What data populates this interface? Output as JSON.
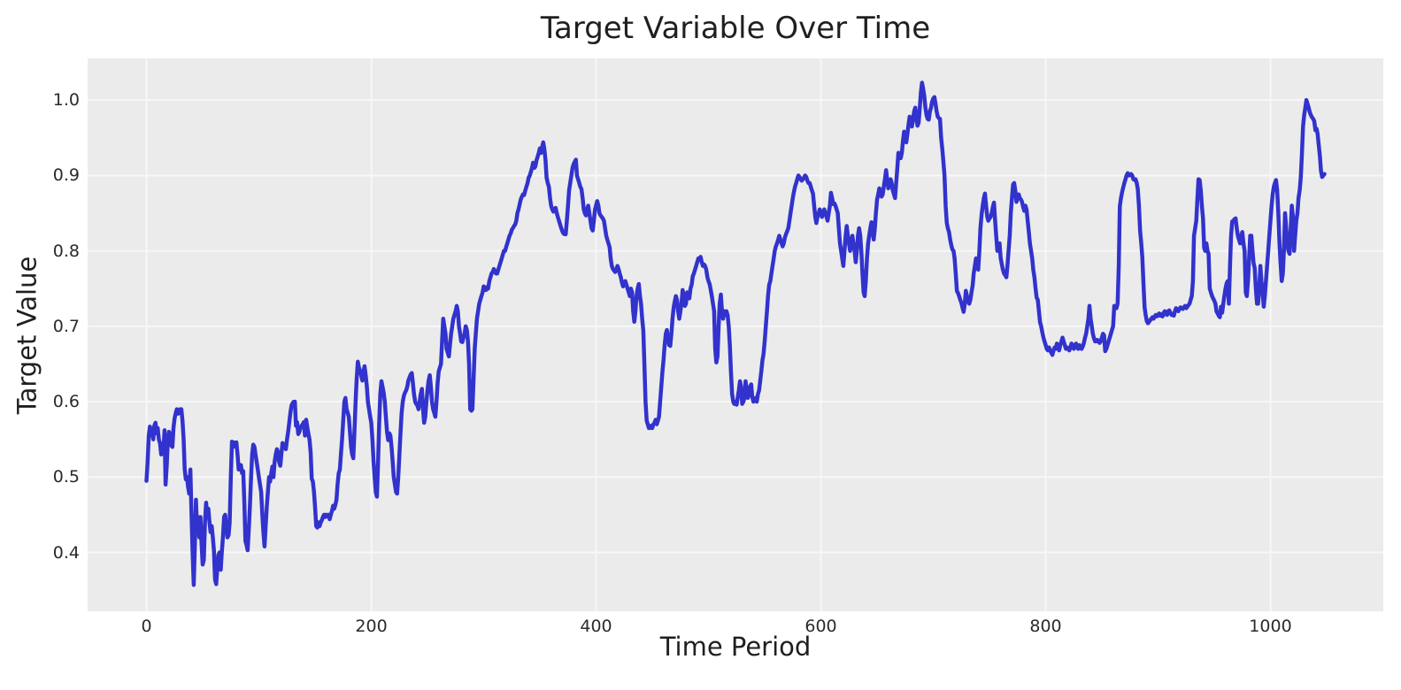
{
  "chart_data": {
    "type": "line",
    "title": "Target Variable Over Time",
    "xlabel": "Time Period",
    "ylabel": "Target Value",
    "x_ticks": [
      0,
      200,
      400,
      600,
      800,
      1000
    ],
    "y_ticks": [
      0.4,
      0.5,
      0.6,
      0.7,
      0.8,
      0.9,
      1.0
    ],
    "xlim": [
      -52.4,
      1100.4
    ],
    "ylim": [
      0.322,
      1.0553
    ],
    "grid": true,
    "legend_position": "none",
    "colors": {
      "line": "#3232cd",
      "plot_background": "#ebebeb",
      "grid": "#f7f7f7",
      "text": "#262626"
    },
    "series": [
      {
        "name": "target",
        "color": "#3232cd",
        "x_start": 0,
        "x_step": 1,
        "values": [
          0.495,
          0.52,
          0.555,
          0.567,
          0.562,
          0.558,
          0.55,
          0.568,
          0.572,
          0.558,
          0.565,
          0.55,
          0.545,
          0.53,
          0.542,
          0.533,
          0.562,
          0.49,
          0.515,
          0.55,
          0.56,
          0.556,
          0.542,
          0.54,
          0.565,
          0.578,
          0.585,
          0.59,
          0.584,
          0.585,
          0.59,
          0.59,
          0.575,
          0.55,
          0.51,
          0.497,
          0.5,
          0.487,
          0.478,
          0.51,
          0.455,
          0.4,
          0.357,
          0.41,
          0.47,
          0.43,
          0.447,
          0.42,
          0.447,
          0.41,
          0.384,
          0.39,
          0.44,
          0.466,
          0.45,
          0.458,
          0.44,
          0.427,
          0.435,
          0.42,
          0.403,
          0.364,
          0.358,
          0.38,
          0.397,
          0.4,
          0.377,
          0.4,
          0.42,
          0.447,
          0.45,
          0.435,
          0.42,
          0.423,
          0.44,
          0.5,
          0.547,
          0.544,
          0.546,
          0.54,
          0.546,
          0.53,
          0.51,
          0.513,
          0.516,
          0.505,
          0.508,
          0.47,
          0.415,
          0.41,
          0.403,
          0.43,
          0.462,
          0.5,
          0.53,
          0.543,
          0.54,
          0.53,
          0.52,
          0.51,
          0.5,
          0.49,
          0.48,
          0.45,
          0.427,
          0.408,
          0.435,
          0.46,
          0.48,
          0.5,
          0.494,
          0.505,
          0.514,
          0.5,
          0.52,
          0.53,
          0.537,
          0.533,
          0.52,
          0.515,
          0.53,
          0.545,
          0.543,
          0.54,
          0.537,
          0.55,
          0.56,
          0.572,
          0.585,
          0.595,
          0.598,
          0.6,
          0.6,
          0.568,
          0.573,
          0.557,
          0.56,
          0.565,
          0.568,
          0.57,
          0.573,
          0.555,
          0.576,
          0.567,
          0.558,
          0.55,
          0.533,
          0.498,
          0.494,
          0.48,
          0.46,
          0.435,
          0.433,
          0.44,
          0.435,
          0.44,
          0.443,
          0.447,
          0.45,
          0.447,
          0.45,
          0.448,
          0.45,
          0.444,
          0.45,
          0.455,
          0.462,
          0.458,
          0.463,
          0.47,
          0.49,
          0.505,
          0.51,
          0.53,
          0.55,
          0.575,
          0.6,
          0.605,
          0.59,
          0.585,
          0.58,
          0.56,
          0.54,
          0.53,
          0.525,
          0.56,
          0.6,
          0.63,
          0.653,
          0.645,
          0.641,
          0.635,
          0.628,
          0.64,
          0.647,
          0.635,
          0.62,
          0.6,
          0.59,
          0.58,
          0.572,
          0.55,
          0.52,
          0.5,
          0.48,
          0.474,
          0.52,
          0.57,
          0.61,
          0.627,
          0.62,
          0.612,
          0.6,
          0.58,
          0.56,
          0.549,
          0.558,
          0.555,
          0.54,
          0.52,
          0.5,
          0.49,
          0.48,
          0.478,
          0.5,
          0.53,
          0.56,
          0.585,
          0.6,
          0.608,
          0.612,
          0.615,
          0.62,
          0.628,
          0.632,
          0.636,
          0.638,
          0.625,
          0.61,
          0.6,
          0.597,
          0.595,
          0.59,
          0.6,
          0.61,
          0.617,
          0.59,
          0.572,
          0.58,
          0.6,
          0.615,
          0.628,
          0.635,
          0.62,
          0.6,
          0.59,
          0.585,
          0.58,
          0.6,
          0.625,
          0.64,
          0.645,
          0.65,
          0.68,
          0.71,
          0.7,
          0.69,
          0.67,
          0.665,
          0.66,
          0.675,
          0.69,
          0.7,
          0.71,
          0.715,
          0.72,
          0.727,
          0.72,
          0.7,
          0.69,
          0.68,
          0.679,
          0.685,
          0.69,
          0.7,
          0.695,
          0.68,
          0.65,
          0.59,
          0.588,
          0.59,
          0.63,
          0.67,
          0.69,
          0.71,
          0.72,
          0.73,
          0.735,
          0.74,
          0.745,
          0.753,
          0.75,
          0.748,
          0.752,
          0.75,
          0.76,
          0.765,
          0.77,
          0.772,
          0.776,
          0.773,
          0.77,
          0.77,
          0.775,
          0.78,
          0.785,
          0.79,
          0.795,
          0.8,
          0.8,
          0.805,
          0.81,
          0.815,
          0.82,
          0.823,
          0.828,
          0.83,
          0.833,
          0.835,
          0.84,
          0.85,
          0.855,
          0.862,
          0.868,
          0.872,
          0.875,
          0.874,
          0.88,
          0.885,
          0.89,
          0.897,
          0.9,
          0.905,
          0.91,
          0.917,
          0.91,
          0.912,
          0.92,
          0.925,
          0.93,
          0.936,
          0.93,
          0.938,
          0.944,
          0.935,
          0.92,
          0.897,
          0.89,
          0.885,
          0.87,
          0.86,
          0.855,
          0.852,
          0.855,
          0.857,
          0.85,
          0.845,
          0.84,
          0.835,
          0.83,
          0.826,
          0.823,
          0.822,
          0.822,
          0.84,
          0.86,
          0.88,
          0.89,
          0.9,
          0.91,
          0.915,
          0.918,
          0.921,
          0.9,
          0.895,
          0.89,
          0.885,
          0.882,
          0.87,
          0.855,
          0.85,
          0.847,
          0.855,
          0.86,
          0.85,
          0.84,
          0.83,
          0.827,
          0.84,
          0.855,
          0.86,
          0.866,
          0.86,
          0.85,
          0.847,
          0.845,
          0.843,
          0.84,
          0.83,
          0.82,
          0.815,
          0.81,
          0.805,
          0.79,
          0.78,
          0.776,
          0.774,
          0.772,
          0.775,
          0.78,
          0.776,
          0.77,
          0.765,
          0.758,
          0.753,
          0.757,
          0.76,
          0.755,
          0.75,
          0.745,
          0.74,
          0.75,
          0.745,
          0.72,
          0.706,
          0.72,
          0.74,
          0.75,
          0.756,
          0.74,
          0.73,
          0.71,
          0.694,
          0.65,
          0.6,
          0.575,
          0.57,
          0.565,
          0.565,
          0.568,
          0.565,
          0.57,
          0.572,
          0.576,
          0.57,
          0.575,
          0.58,
          0.6,
          0.62,
          0.64,
          0.655,
          0.675,
          0.69,
          0.695,
          0.685,
          0.675,
          0.674,
          0.69,
          0.71,
          0.725,
          0.733,
          0.74,
          0.735,
          0.72,
          0.71,
          0.72,
          0.73,
          0.748,
          0.74,
          0.727,
          0.73,
          0.745,
          0.74,
          0.737,
          0.75,
          0.755,
          0.766,
          0.77,
          0.775,
          0.78,
          0.785,
          0.79,
          0.79,
          0.792,
          0.785,
          0.78,
          0.782,
          0.78,
          0.775,
          0.765,
          0.76,
          0.756,
          0.748,
          0.74,
          0.73,
          0.72,
          0.67,
          0.652,
          0.66,
          0.7,
          0.73,
          0.742,
          0.72,
          0.71,
          0.72,
          0.715,
          0.72,
          0.715,
          0.7,
          0.674,
          0.64,
          0.61,
          0.6,
          0.597,
          0.6,
          0.596,
          0.605,
          0.615,
          0.627,
          0.62,
          0.597,
          0.6,
          0.605,
          0.627,
          0.615,
          0.605,
          0.61,
          0.62,
          0.623,
          0.606,
          0.6,
          0.603,
          0.605,
          0.6,
          0.61,
          0.615,
          0.627,
          0.64,
          0.655,
          0.663,
          0.68,
          0.7,
          0.72,
          0.74,
          0.755,
          0.76,
          0.77,
          0.78,
          0.79,
          0.8,
          0.806,
          0.81,
          0.815,
          0.82,
          0.815,
          0.81,
          0.806,
          0.81,
          0.818,
          0.822,
          0.826,
          0.83,
          0.84,
          0.85,
          0.86,
          0.87,
          0.878,
          0.885,
          0.89,
          0.895,
          0.9,
          0.898,
          0.895,
          0.893,
          0.895,
          0.897,
          0.9,
          0.898,
          0.893,
          0.89,
          0.89,
          0.885,
          0.88,
          0.876,
          0.86,
          0.845,
          0.837,
          0.845,
          0.85,
          0.855,
          0.85,
          0.845,
          0.85,
          0.855,
          0.85,
          0.845,
          0.84,
          0.85,
          0.86,
          0.877,
          0.87,
          0.862,
          0.863,
          0.86,
          0.855,
          0.85,
          0.83,
          0.81,
          0.8,
          0.79,
          0.78,
          0.8,
          0.82,
          0.833,
          0.82,
          0.81,
          0.8,
          0.81,
          0.82,
          0.81,
          0.8,
          0.785,
          0.8,
          0.82,
          0.83,
          0.82,
          0.8,
          0.77,
          0.745,
          0.74,
          0.76,
          0.79,
          0.81,
          0.82,
          0.83,
          0.838,
          0.825,
          0.815,
          0.83,
          0.85,
          0.868,
          0.875,
          0.883,
          0.877,
          0.872,
          0.875,
          0.885,
          0.895,
          0.907,
          0.895,
          0.883,
          0.888,
          0.895,
          0.89,
          0.88,
          0.875,
          0.87,
          0.89,
          0.91,
          0.93,
          0.925,
          0.923,
          0.93,
          0.945,
          0.958,
          0.95,
          0.944,
          0.955,
          0.968,
          0.978,
          0.97,
          0.965,
          0.975,
          0.985,
          0.99,
          0.975,
          0.966,
          0.97,
          0.99,
          1.01,
          1.023,
          1.015,
          1.005,
          0.99,
          0.98,
          0.975,
          0.974,
          0.985,
          0.99,
          0.998,
          1.002,
          1.004,
          0.995,
          0.985,
          0.978,
          0.976,
          0.975,
          0.95,
          0.935,
          0.919,
          0.9,
          0.86,
          0.837,
          0.83,
          0.825,
          0.815,
          0.808,
          0.802,
          0.8,
          0.79,
          0.77,
          0.747,
          0.744,
          0.74,
          0.735,
          0.731,
          0.725,
          0.719,
          0.73,
          0.747,
          0.74,
          0.733,
          0.73,
          0.735,
          0.745,
          0.754,
          0.77,
          0.78,
          0.79,
          0.782,
          0.775,
          0.8,
          0.83,
          0.848,
          0.86,
          0.87,
          0.876,
          0.86,
          0.845,
          0.84,
          0.843,
          0.845,
          0.85,
          0.858,
          0.864,
          0.84,
          0.82,
          0.8,
          0.805,
          0.81,
          0.79,
          0.782,
          0.775,
          0.77,
          0.768,
          0.765,
          0.78,
          0.8,
          0.82,
          0.85,
          0.87,
          0.888,
          0.89,
          0.88,
          0.865,
          0.87,
          0.875,
          0.87,
          0.868,
          0.865,
          0.858,
          0.853,
          0.86,
          0.855,
          0.84,
          0.825,
          0.81,
          0.8,
          0.79,
          0.775,
          0.765,
          0.75,
          0.738,
          0.735,
          0.72,
          0.705,
          0.7,
          0.692,
          0.685,
          0.68,
          0.675,
          0.67,
          0.668,
          0.672,
          0.668,
          0.665,
          0.662,
          0.668,
          0.672,
          0.67,
          0.677,
          0.672,
          0.668,
          0.675,
          0.68,
          0.685,
          0.68,
          0.675,
          0.67,
          0.672,
          0.67,
          0.668,
          0.672,
          0.677,
          0.675,
          0.67,
          0.673,
          0.677,
          0.672,
          0.67,
          0.675,
          0.672,
          0.67,
          0.673,
          0.678,
          0.685,
          0.69,
          0.7,
          0.71,
          0.727,
          0.71,
          0.7,
          0.69,
          0.684,
          0.68,
          0.68,
          0.682,
          0.68,
          0.678,
          0.68,
          0.685,
          0.69,
          0.688,
          0.667,
          0.67,
          0.675,
          0.68,
          0.685,
          0.69,
          0.695,
          0.7,
          0.727,
          0.725,
          0.724,
          0.73,
          0.78,
          0.859,
          0.87,
          0.878,
          0.884,
          0.89,
          0.895,
          0.9,
          0.903,
          0.9,
          0.901,
          0.902,
          0.9,
          0.895,
          0.894,
          0.895,
          0.89,
          0.882,
          0.86,
          0.827,
          0.81,
          0.792,
          0.757,
          0.725,
          0.715,
          0.707,
          0.704,
          0.706,
          0.708,
          0.71,
          0.712,
          0.71,
          0.713,
          0.715,
          0.713,
          0.715,
          0.717,
          0.714,
          0.716,
          0.713,
          0.718,
          0.72,
          0.716,
          0.715,
          0.72,
          0.721,
          0.718,
          0.715,
          0.716,
          0.714,
          0.72,
          0.724,
          0.722,
          0.72,
          0.723,
          0.725,
          0.724,
          0.723,
          0.725,
          0.727,
          0.724,
          0.726,
          0.728,
          0.73,
          0.735,
          0.74,
          0.76,
          0.82,
          0.83,
          0.84,
          0.87,
          0.895,
          0.894,
          0.88,
          0.86,
          0.843,
          0.804,
          0.8,
          0.81,
          0.8,
          0.796,
          0.75,
          0.745,
          0.74,
          0.737,
          0.734,
          0.73,
          0.72,
          0.717,
          0.714,
          0.712,
          0.726,
          0.718,
          0.73,
          0.74,
          0.75,
          0.757,
          0.76,
          0.73,
          0.78,
          0.82,
          0.839,
          0.84,
          0.842,
          0.843,
          0.83,
          0.82,
          0.815,
          0.81,
          0.82,
          0.825,
          0.81,
          0.8,
          0.745,
          0.74,
          0.76,
          0.79,
          0.82,
          0.82,
          0.8,
          0.784,
          0.777,
          0.75,
          0.73,
          0.73,
          0.75,
          0.78,
          0.76,
          0.745,
          0.726,
          0.74,
          0.76,
          0.78,
          0.8,
          0.82,
          0.84,
          0.86,
          0.875,
          0.885,
          0.89,
          0.894,
          0.88,
          0.85,
          0.81,
          0.784,
          0.76,
          0.77,
          0.8,
          0.85,
          0.83,
          0.81,
          0.8,
          0.796,
          0.83,
          0.86,
          0.845,
          0.8,
          0.82,
          0.84,
          0.85,
          0.87,
          0.88,
          0.898,
          0.93,
          0.965,
          0.98,
          0.99,
          1.0,
          0.995,
          0.99,
          0.984,
          0.98,
          0.977,
          0.975,
          0.972,
          0.96,
          0.962,
          0.955,
          0.94,
          0.925,
          0.906,
          0.898,
          0.9,
          0.902
        ]
      }
    ]
  }
}
